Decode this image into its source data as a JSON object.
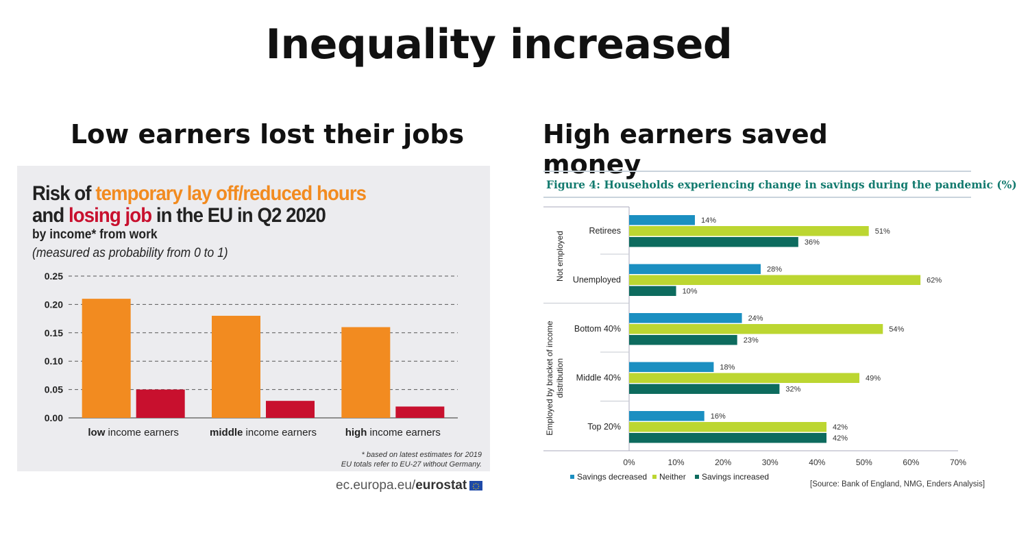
{
  "slide": {
    "title": "Inequality increased",
    "left_heading": "Low earners lost their jobs",
    "right_heading": "High earners saved money"
  },
  "left_chart_text": {
    "title_part1": "Risk of ",
    "title_part2": "temporary lay off/reduced hours",
    "title_part3": "and ",
    "title_part4": "losing job",
    "title_part5": " in the EU in Q2 2020",
    "subtitle": "by income* from work",
    "subtitle2": "(measured as probability from 0 to 1)",
    "footnote1": "* based on latest estimates for 2019",
    "footnote2": "EU totals refer to EU-27 without Germany.",
    "source_prefix": "ec.europa.eu/",
    "source_brand": "eurostat"
  },
  "right_chart_text": {
    "figure_title": "Figure 4: Households experiencing change in savings during the pandemic (%)",
    "source": "[Source: Bank of England, NMG, Enders Analysis]"
  },
  "chart_data": [
    {
      "type": "bar",
      "title": "Risk of temporary lay off/reduced hours and losing job in the EU in Q2 2020",
      "subtitle": "by income* from work",
      "categories": [
        {
          "bold": "low",
          "rest": " income earners"
        },
        {
          "bold": "middle",
          "rest": " income earners"
        },
        {
          "bold": "high",
          "rest": " income earners"
        }
      ],
      "series": [
        {
          "name": "temporary lay off/reduced hours",
          "color": "#f28b20",
          "values": [
            0.21,
            0.18,
            0.16
          ]
        },
        {
          "name": "losing job",
          "color": "#c8102e",
          "values": [
            0.05,
            0.03,
            0.02
          ]
        }
      ],
      "ylim": [
        0,
        0.25
      ],
      "yticks": [
        "0.00",
        "0.05",
        "0.10",
        "0.15",
        "0.20",
        "0.25"
      ],
      "grid": "dashed-horizontal",
      "legend": "none"
    },
    {
      "type": "bar",
      "orientation": "horizontal",
      "title": "Figure 4: Households experiencing change in savings during the pandemic (%)",
      "groups": [
        {
          "label": "Not employed",
          "categories": [
            "Retirees",
            "Unemployed"
          ]
        },
        {
          "label_line1": "Employed by bracket of income",
          "label_line2": "distribution",
          "categories": [
            "Bottom 40%",
            "Middle 40%",
            "Top 20%"
          ]
        }
      ],
      "categories": [
        "Retirees",
        "Unemployed",
        "Bottom 40%",
        "Middle 40%",
        "Top 20%"
      ],
      "series": [
        {
          "name": "Savings decreased",
          "color": "#1b8fc1",
          "values": [
            14,
            28,
            24,
            18,
            16
          ]
        },
        {
          "name": "Neither",
          "color": "#bcd631",
          "values": [
            51,
            62,
            54,
            49,
            42
          ]
        },
        {
          "name": "Savings increased",
          "color": "#0d6b5e",
          "values": [
            36,
            10,
            23,
            32,
            42
          ]
        }
      ],
      "value_suffix": "%",
      "xlim": [
        0,
        70
      ],
      "xticks": [
        "0%",
        "10%",
        "20%",
        "30%",
        "40%",
        "50%",
        "60%",
        "70%"
      ],
      "legend": "bottom-left"
    }
  ]
}
